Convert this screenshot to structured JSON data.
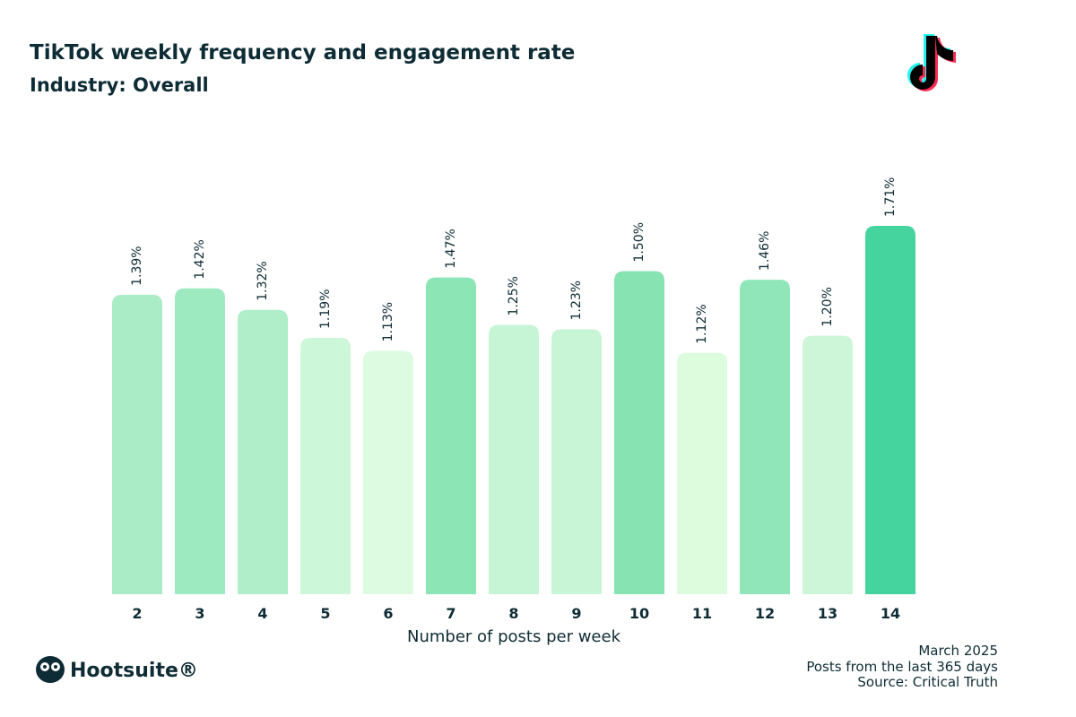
{
  "chart_data": {
    "type": "bar",
    "title": "TikTok weekly frequency and engagement rate",
    "subtitle": "Industry: Overall",
    "x_label": "Number of posts per week",
    "categories": [
      "2",
      "3",
      "4",
      "5",
      "6",
      "7",
      "8",
      "9",
      "10",
      "11",
      "12",
      "13",
      "14"
    ],
    "values": [
      1.39,
      1.42,
      1.32,
      1.19,
      1.13,
      1.47,
      1.25,
      1.23,
      1.5,
      1.12,
      1.46,
      1.2,
      1.71
    ],
    "value_labels": [
      "1.39%",
      "1.42%",
      "1.32%",
      "1.19%",
      "1.13%",
      "1.47%",
      "1.25%",
      "1.23%",
      "1.50%",
      "1.12%",
      "1.46%",
      "1.20%",
      "1.71%"
    ],
    "colors": [
      "#a9ecc6",
      "#9eeac0",
      "#afeec9",
      "#cdf7d9",
      "#ddfbe1",
      "#8be5b5",
      "#c5f5d4",
      "#c7f5d5",
      "#87e3b2",
      "#ddfbdd",
      "#90e6b8",
      "#ccf6d7",
      "#45d49e"
    ],
    "footer": [
      "March 2025",
      "Posts from the last 365 days",
      "Source: Critical Truth"
    ],
    "brand": "Hootsuite®"
  }
}
